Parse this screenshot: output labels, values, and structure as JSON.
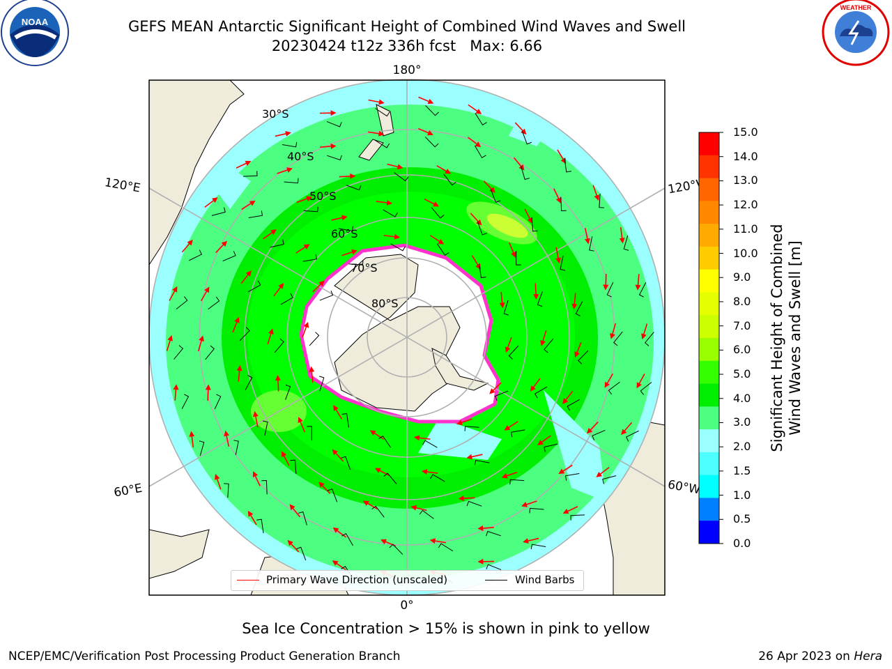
{
  "header": {
    "title_line1": "GEFS MEAN Antarctic Significant Height of Combined Wind Waves and Swell",
    "title_line2": "20230424 t12z 336h fcst   Max: 6.66"
  },
  "logos": {
    "left": {
      "name": "noaa-logo",
      "text": "NOAA"
    },
    "right": {
      "name": "nws-logo",
      "text": "NATIONAL WEATHER SERVICE"
    }
  },
  "map": {
    "projection": "south-polar-stereographic",
    "lon_labels": {
      "top": "180°",
      "bottom": "0°",
      "upper_left": "120°E",
      "upper_right": "120°W",
      "lower_left": "60°E",
      "lower_right": "60°W"
    },
    "lat_labels": [
      "30°S",
      "40°S",
      "50°S",
      "60°S",
      "70°S",
      "80°S"
    ],
    "colors": {
      "ocean_calm": "#9cffff",
      "ocean_mid": "#4dff80",
      "ocean_high": "#00ee00",
      "ocean_peak": "#66ff33",
      "ocean_max": "#ccff33",
      "land": "#efecdc",
      "ice_edge": "#ff33cc",
      "grid": "#b0b0b0"
    }
  },
  "legend": {
    "primary_wave": "Primary Wave Direction (unscaled)",
    "wind_barbs": "Wind Barbs",
    "primary_color": "#ff0000",
    "barb_color": "#000000"
  },
  "colorbar": {
    "label_line1": "Significant Height of Combined",
    "label_line2": "Wind Waves and Swell [m]",
    "ticks": [
      "15.0",
      "14.0",
      "13.0",
      "12.0",
      "11.0",
      "10.0",
      "9.0",
      "8.0",
      "7.0",
      "6.0",
      "5.0",
      "4.0",
      "3.0",
      "2.0",
      "1.5",
      "1.0",
      "0.5",
      "0.0"
    ],
    "colors": [
      "#ff0000",
      "#ff3300",
      "#ff6600",
      "#ff8800",
      "#ffaa00",
      "#ffcc00",
      "#ffff00",
      "#e6ff00",
      "#ccff00",
      "#99ff00",
      "#33ff00",
      "#00ee00",
      "#4dff80",
      "#9cffff",
      "#4dffff",
      "#00ffff",
      "#0080ff",
      "#0000ff"
    ]
  },
  "notes": {
    "sea_ice": "Sea Ice Concentration > 15% is shown in pink to yellow"
  },
  "footer": {
    "left": "NCEP/EMC/Verification Post Processing Product Generation Branch",
    "right_date": "26 Apr 2023 on ",
    "right_host": "Hera"
  }
}
